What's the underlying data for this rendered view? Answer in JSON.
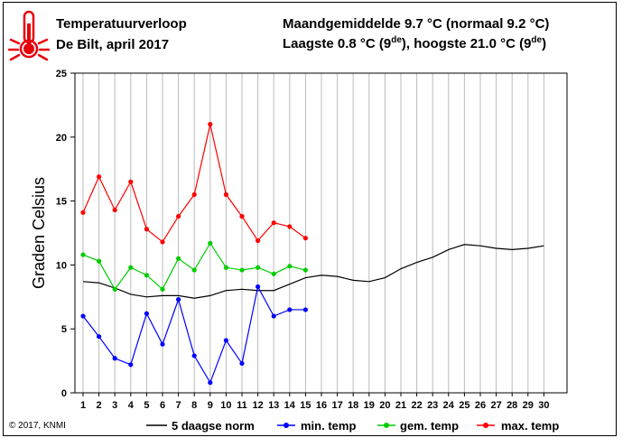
{
  "header": {
    "title": "Temperatuurverloop",
    "subtitle": "De Bilt, april 2017",
    "line1": "Maandgemiddelde 9.7 °C (normaal 9.2 °C)",
    "line2_prefix": "Laagste 0.8 °C (9",
    "line2_sup1": "de",
    "line2_mid": "), hoogste 21.0 °C (9",
    "line2_sup2": "de",
    "line2_suffix": ")"
  },
  "copyright": "© 2017, KNMI",
  "colors": {
    "norm": "#000000",
    "min": "#0000ff",
    "gem": "#00cc00",
    "max": "#ff0000",
    "icon": "#e8000b"
  },
  "icon": "thermometer-icon",
  "chart_data": {
    "type": "line",
    "ylabel": "Graden Celsius",
    "xlabel": "",
    "ylim": [
      0,
      25
    ],
    "yticks": [
      0,
      5,
      10,
      15,
      20,
      25
    ],
    "xlim": [
      1,
      30
    ],
    "x": [
      1,
      2,
      3,
      4,
      5,
      6,
      7,
      8,
      9,
      10,
      11,
      12,
      13,
      14,
      15,
      16,
      17,
      18,
      19,
      20,
      21,
      22,
      23,
      24,
      25,
      26,
      27,
      28,
      29,
      30
    ],
    "grid": "vertical",
    "legend_position": "bottom",
    "series": [
      {
        "name": "5 daagse norm",
        "color": "#000000",
        "markers": false,
        "x": [
          1,
          2,
          3,
          4,
          5,
          6,
          7,
          8,
          9,
          10,
          11,
          12,
          13,
          14,
          15,
          16,
          17,
          18,
          19,
          20,
          21,
          22,
          23,
          24,
          25,
          26,
          27,
          28,
          29,
          30
        ],
        "values": [
          8.7,
          8.6,
          8.2,
          7.7,
          7.5,
          7.6,
          7.6,
          7.4,
          7.6,
          8.0,
          8.1,
          8.0,
          8.0,
          8.5,
          9.0,
          9.2,
          9.1,
          8.8,
          8.7,
          9.0,
          9.7,
          10.2,
          10.6,
          11.2,
          11.6,
          11.5,
          11.3,
          11.2,
          11.3,
          11.5
        ]
      },
      {
        "name": "min. temp",
        "color": "#0000ff",
        "markers": true,
        "x": [
          1,
          2,
          3,
          4,
          5,
          6,
          7,
          8,
          9,
          10,
          11,
          12,
          13,
          14,
          15
        ],
        "values": [
          6.0,
          4.4,
          2.7,
          2.2,
          6.2,
          3.8,
          7.3,
          2.9,
          0.8,
          4.1,
          2.3,
          8.3,
          6.0,
          6.5,
          6.5
        ]
      },
      {
        "name": "gem. temp",
        "color": "#00cc00",
        "markers": true,
        "x": [
          1,
          2,
          3,
          4,
          5,
          6,
          7,
          8,
          9,
          10,
          11,
          12,
          13,
          14,
          15
        ],
        "values": [
          10.8,
          10.3,
          8.1,
          9.8,
          9.2,
          8.1,
          10.5,
          9.6,
          11.7,
          9.8,
          9.6,
          9.8,
          9.3,
          9.9,
          9.6
        ]
      },
      {
        "name": "max. temp",
        "color": "#ff0000",
        "markers": true,
        "x": [
          1,
          2,
          3,
          4,
          5,
          6,
          7,
          8,
          9,
          10,
          11,
          12,
          13,
          14,
          15
        ],
        "values": [
          14.1,
          16.9,
          14.3,
          16.5,
          12.8,
          11.8,
          13.8,
          15.5,
          21.0,
          15.5,
          13.8,
          11.9,
          13.3,
          13.0,
          12.1
        ]
      }
    ]
  }
}
